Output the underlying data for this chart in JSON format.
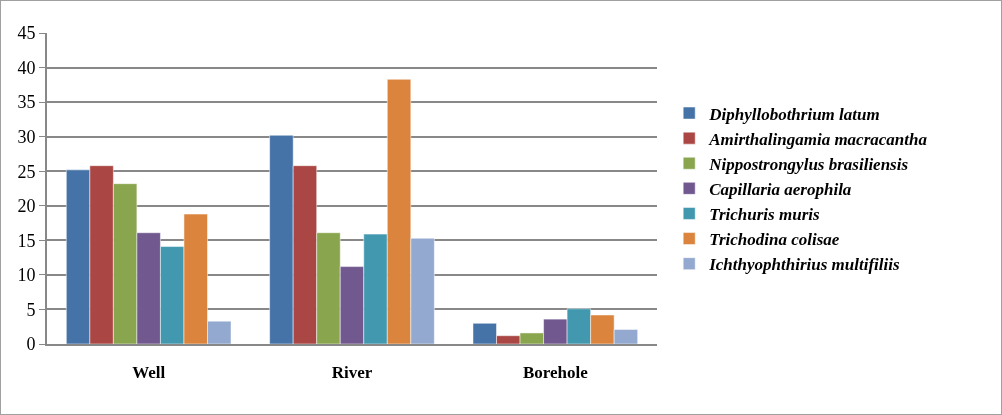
{
  "chart_data": {
    "type": "bar",
    "categories": [
      "Well",
      "River",
      "Borehole"
    ],
    "series": [
      {
        "name": "Diphyllobothrium latum",
        "color": "#4572a7",
        "values": [
          25.2,
          30.2,
          3.0
        ]
      },
      {
        "name": "Amirthalingamia macracantha",
        "color": "#aa4643",
        "values": [
          25.8,
          25.8,
          1.2
        ]
      },
      {
        "name": "Nippostrongylus brasiliensis",
        "color": "#89a54e",
        "values": [
          23.2,
          16.1,
          1.6
        ]
      },
      {
        "name": "Capillaria aerophila",
        "color": "#71588f",
        "values": [
          16.1,
          11.2,
          3.6
        ]
      },
      {
        "name": "Trichuris muris",
        "color": "#4198af",
        "values": [
          14.1,
          15.9,
          5.1
        ]
      },
      {
        "name": "Trichodina colisae",
        "color": "#db843d",
        "values": [
          18.8,
          38.3,
          4.2
        ]
      },
      {
        "name": "Ichthyophthirius multifiliis",
        "color": "#93a9cf",
        "values": [
          3.3,
          15.3,
          2.1
        ]
      }
    ],
    "ylim": [
      0,
      45
    ],
    "yticks": [
      0,
      5,
      10,
      15,
      20,
      25,
      30,
      35,
      40,
      45
    ],
    "grid": "y",
    "legend": "right"
  }
}
